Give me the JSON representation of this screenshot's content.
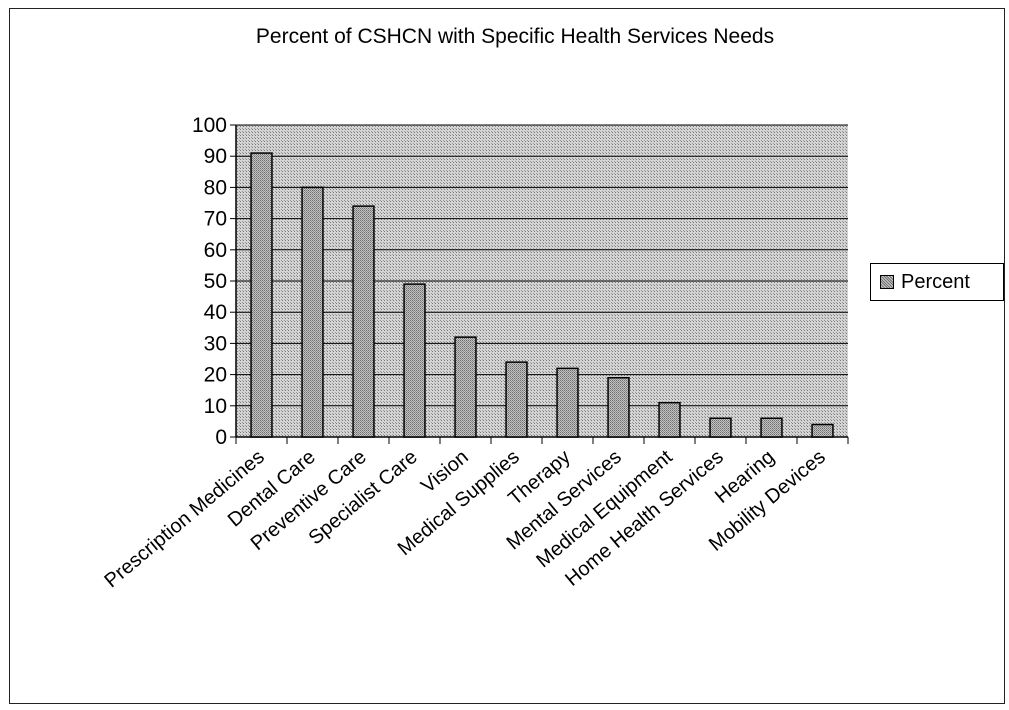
{
  "chart_data": {
    "type": "bar",
    "title": "Percent of CSHCN with Specific Health Services Needs",
    "xlabel": "",
    "ylabel": "",
    "ylim": [
      0,
      100
    ],
    "yticks": [
      "0",
      "10",
      "20",
      "30",
      "40",
      "50",
      "60",
      "70",
      "80",
      "90",
      "100"
    ],
    "grid": true,
    "legend_position": "right",
    "categories": [
      "Prescription Medicines",
      "Dental Care",
      "Preventive Care",
      "Specialist Care",
      "Vision",
      "Medical Supplies",
      "Therapy",
      "Mental Services",
      "Medical Equipment",
      "Home Health Services",
      "Hearing",
      "Mobility Devices"
    ],
    "series": [
      {
        "name": "Percent",
        "values": [
          91,
          80,
          74,
          49,
          32,
          24,
          22,
          19,
          11,
          6,
          6,
          4
        ]
      }
    ]
  },
  "colors": {
    "plot_background": "#bdbdbd",
    "bar_fill": "#a7a7a7",
    "outline": "#000000"
  }
}
